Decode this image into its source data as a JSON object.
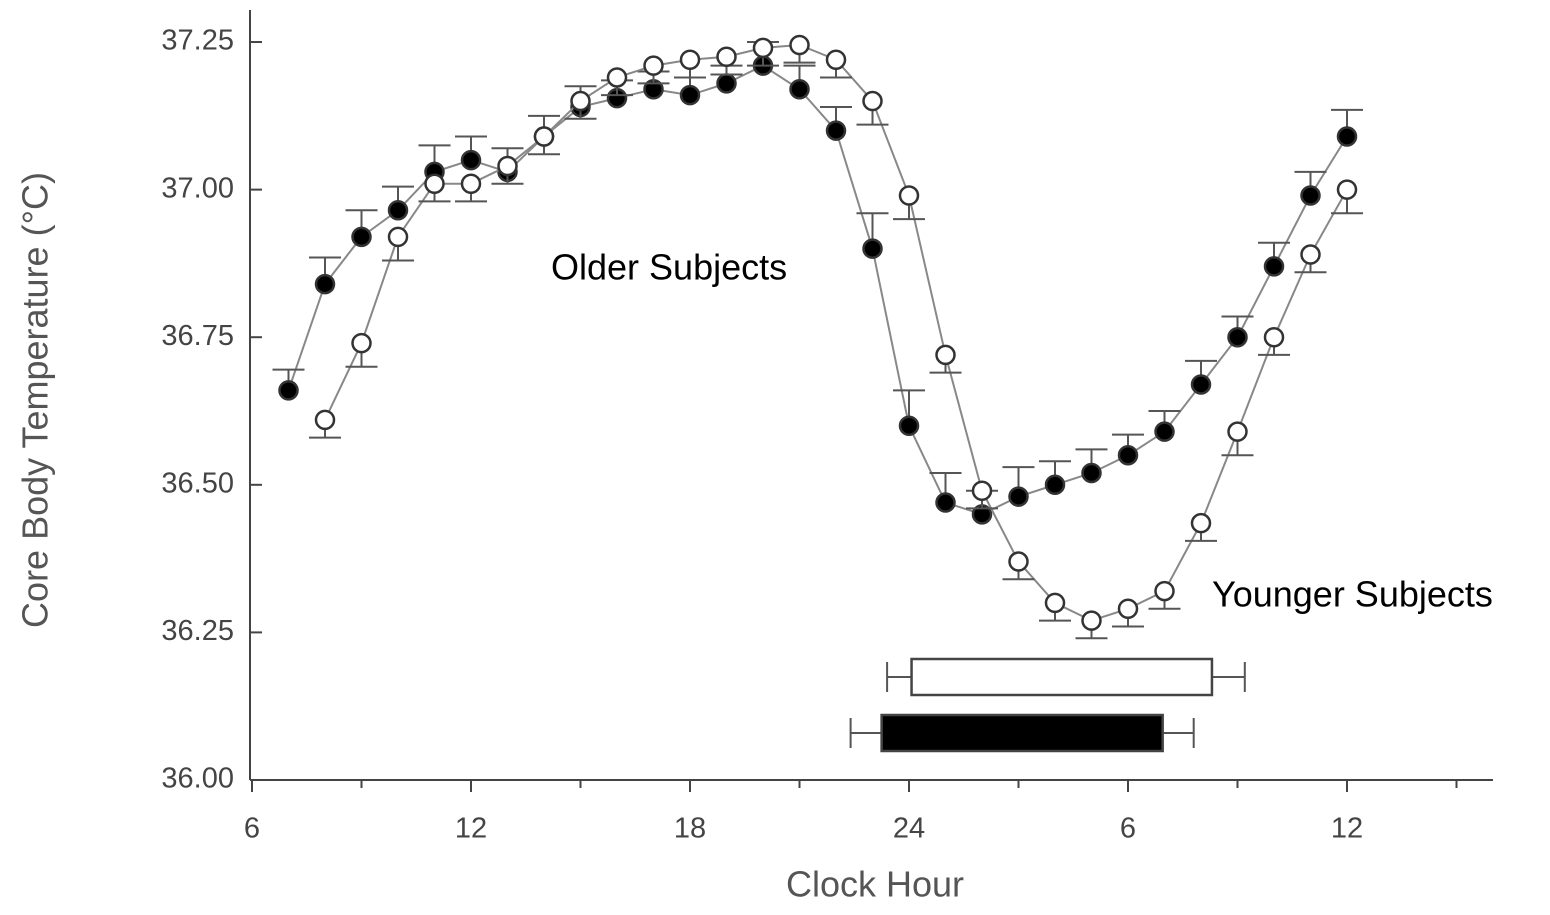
{
  "chart_data": {
    "type": "line",
    "x_label": "Clock Hour",
    "y_label": "Core Body Temperature (°C)",
    "xlim": [
      6,
      40
    ],
    "ylim": [
      36.0,
      37.3
    ],
    "xticks": [
      6,
      12,
      18,
      24,
      {
        "value": 30,
        "label": "6"
      },
      {
        "value": 36,
        "label": "12"
      }
    ],
    "xminor_ticks": [
      9,
      15,
      21,
      27,
      33,
      39
    ],
    "yticks": [
      {
        "value": 36.0,
        "label": "36.00"
      },
      {
        "value": 36.25,
        "label": "36.25"
      },
      {
        "value": 36.5,
        "label": "36.50"
      },
      {
        "value": 36.75,
        "label": "36.75"
      },
      {
        "value": 37.0,
        "label": "37.00"
      },
      {
        "value": 37.25,
        "label": "37.25"
      }
    ],
    "series": [
      {
        "name": "Older Subjects",
        "marker_fill": "#000000",
        "color": "#888888",
        "error_side": "up",
        "x": [
          7,
          8,
          9,
          10,
          11,
          12,
          13,
          14,
          15,
          16,
          17,
          18,
          19,
          20,
          21,
          22,
          23,
          24,
          25,
          26,
          27,
          28,
          29,
          30,
          31,
          32,
          33,
          34,
          35,
          36
        ],
        "values": [
          36.66,
          36.84,
          36.92,
          36.965,
          37.03,
          37.05,
          37.03,
          37.09,
          37.14,
          37.155,
          37.17,
          37.16,
          37.18,
          37.21,
          37.17,
          37.1,
          36.9,
          36.6,
          36.47,
          36.45,
          36.48,
          36.5,
          36.52,
          36.55,
          36.59,
          36.67,
          36.75,
          36.87,
          36.99,
          37.09
        ],
        "errors": [
          0.035,
          0.045,
          0.045,
          0.04,
          0.045,
          0.04,
          0.04,
          0.035,
          0.035,
          0.03,
          0.03,
          0.03,
          0.03,
          0.04,
          0.04,
          0.04,
          0.06,
          0.06,
          0.05,
          0.04,
          0.05,
          0.04,
          0.04,
          0.035,
          0.035,
          0.04,
          0.035,
          0.04,
          0.04,
          0.045
        ]
      },
      {
        "name": "Younger Subjects",
        "marker_fill": "#ffffff",
        "color": "#888888",
        "error_side": "down",
        "x": [
          8,
          9,
          10,
          11,
          12,
          13,
          14,
          15,
          16,
          17,
          18,
          19,
          20,
          21,
          22,
          23,
          24,
          25,
          26,
          27,
          28,
          29,
          30,
          31,
          32,
          33,
          34,
          35,
          36
        ],
        "values": [
          36.61,
          36.74,
          36.92,
          37.01,
          37.01,
          37.04,
          37.09,
          37.15,
          37.19,
          37.21,
          37.22,
          37.225,
          37.24,
          37.245,
          37.22,
          37.15,
          36.99,
          36.72,
          36.49,
          36.37,
          36.3,
          36.27,
          36.29,
          36.32,
          36.435,
          36.59,
          36.75,
          36.89,
          37.0
        ],
        "errors": [
          0.03,
          0.04,
          0.04,
          0.03,
          0.03,
          0.03,
          0.03,
          0.03,
          0.03,
          0.03,
          0.03,
          0.03,
          0.03,
          0.03,
          0.03,
          0.04,
          0.04,
          0.03,
          0.03,
          0.03,
          0.03,
          0.03,
          0.03,
          0.03,
          0.03,
          0.04,
          0.03,
          0.03,
          0.04
        ]
      }
    ],
    "sleep_bars": [
      {
        "series": 1,
        "start": 24.07,
        "end": 32.3,
        "start_error": 0.67,
        "end_error": 0.9
      },
      {
        "series": 0,
        "start": 23.25,
        "end": 30.95,
        "start_error": 0.85,
        "end_error": 0.85
      }
    ]
  }
}
